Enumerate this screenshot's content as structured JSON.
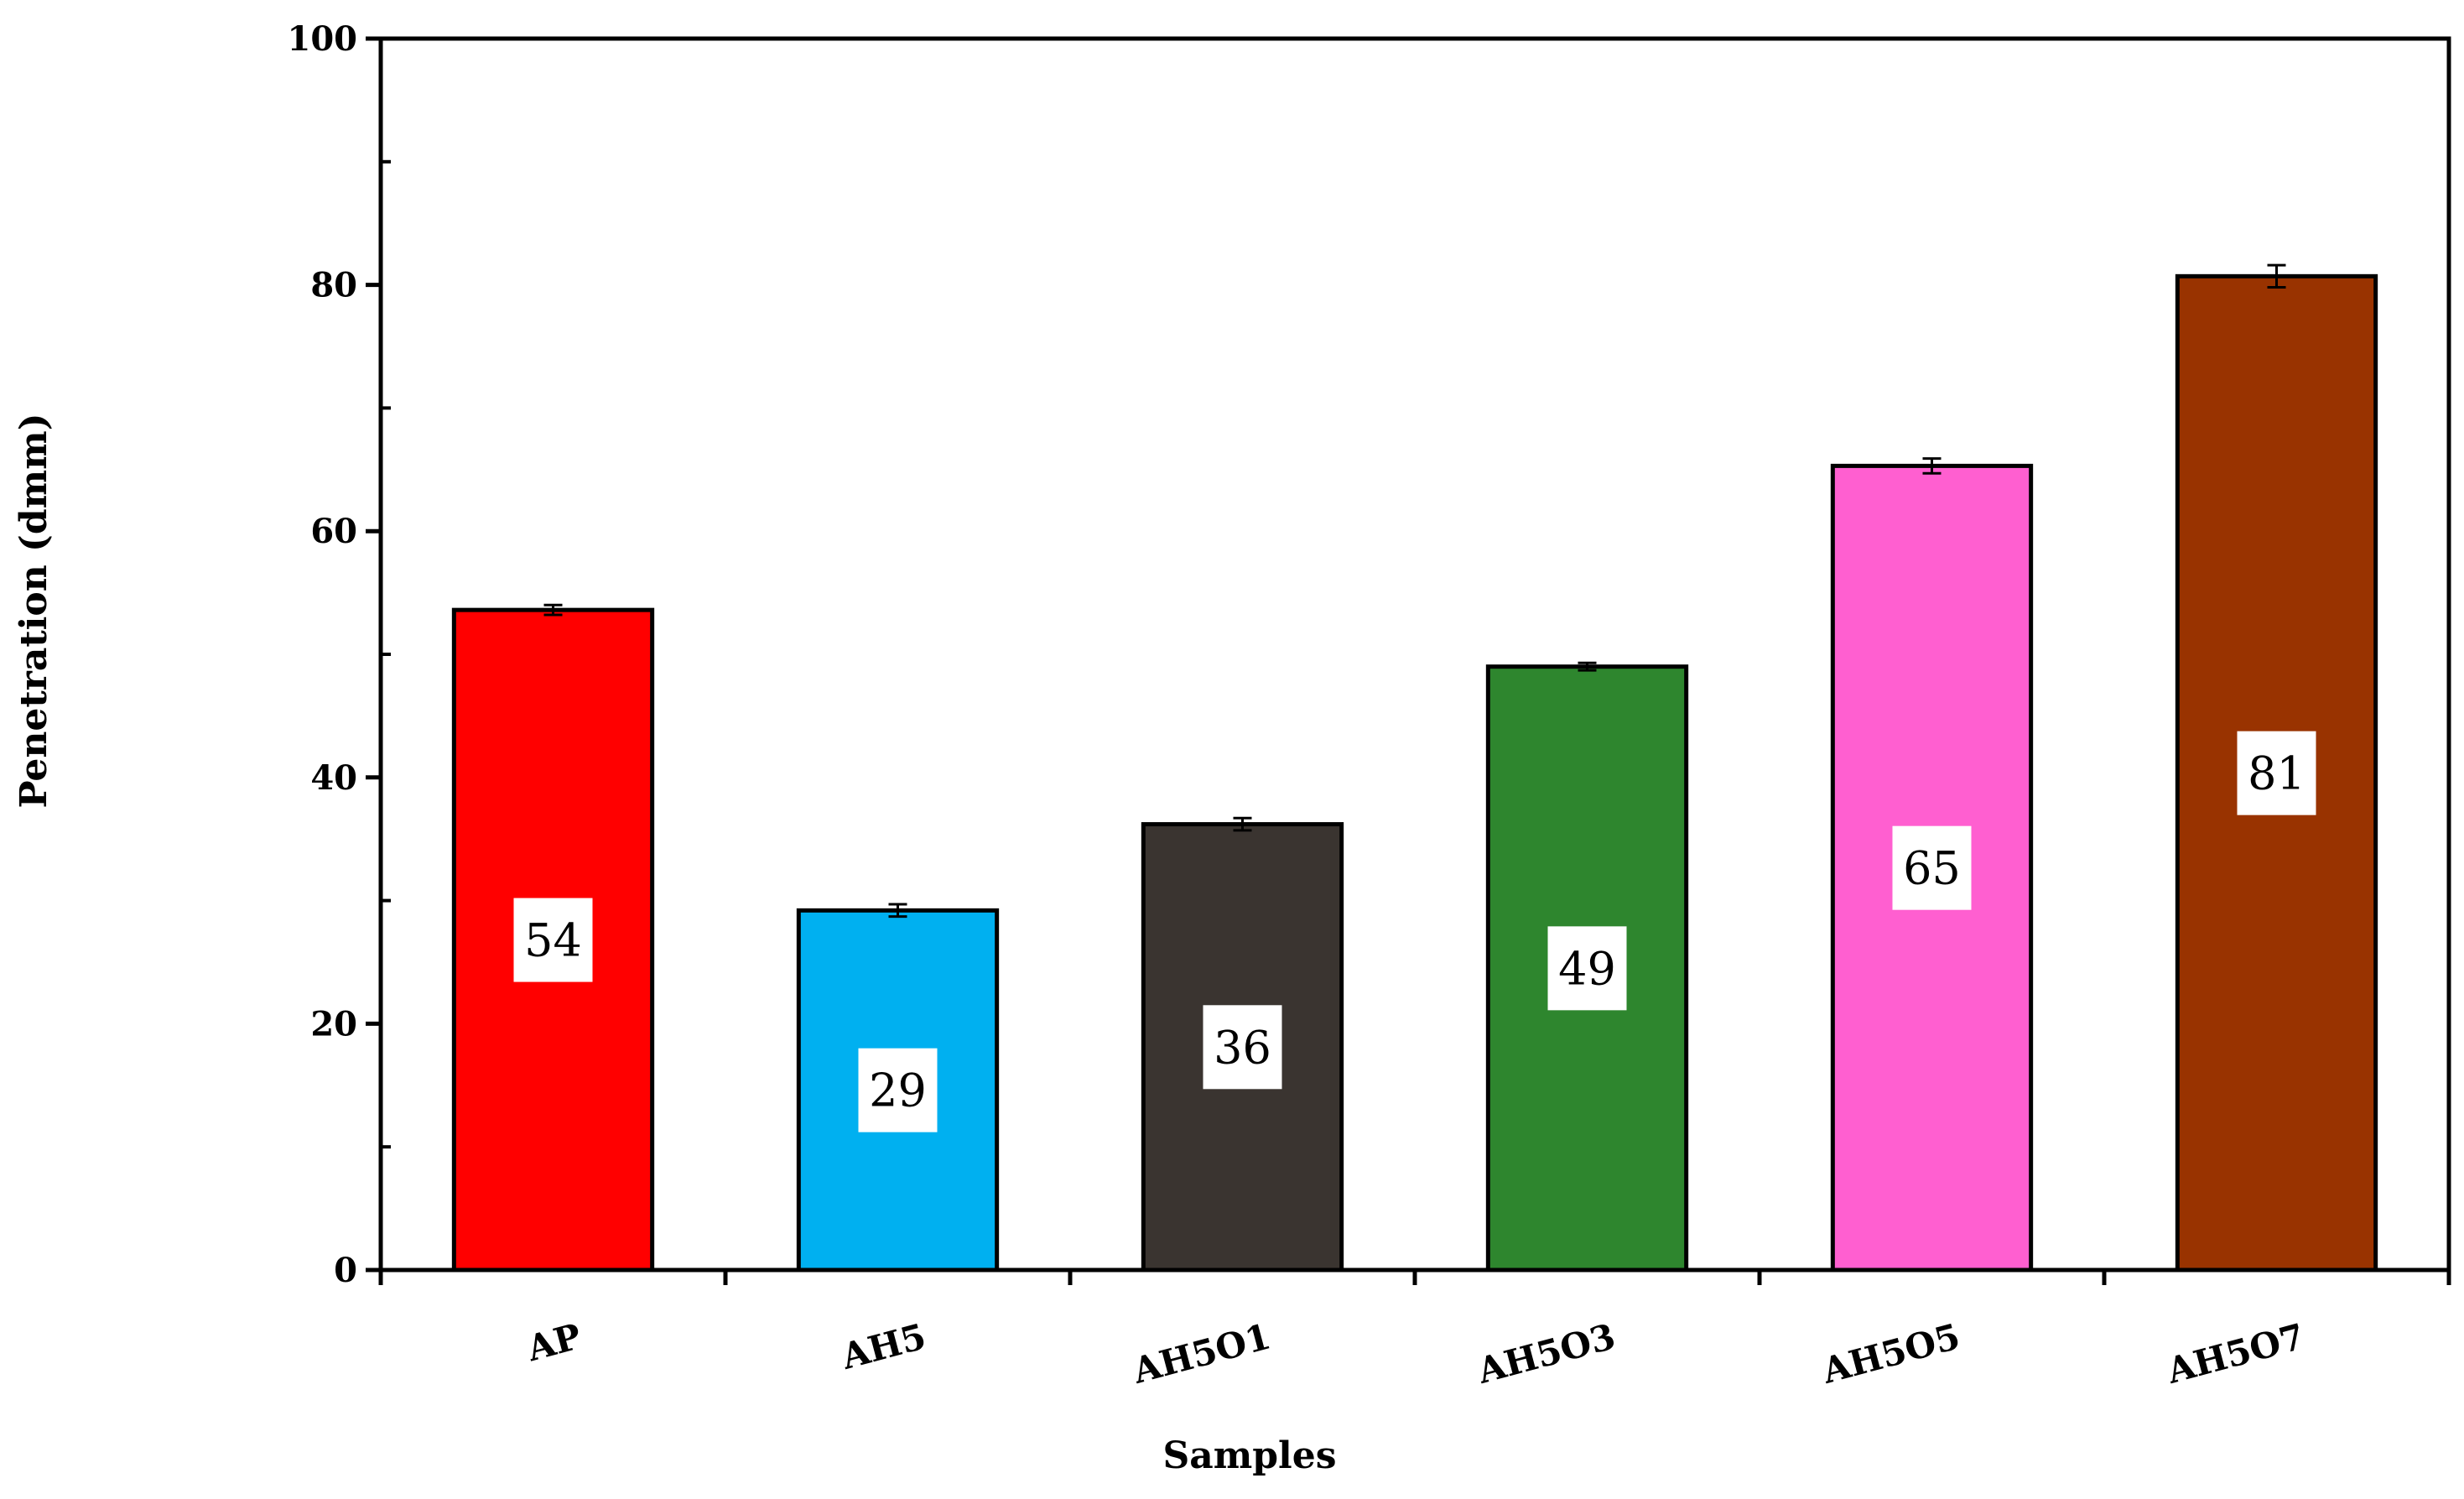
{
  "chart_data": {
    "type": "bar",
    "title": "",
    "xlabel": "Samples",
    "ylabel": "Penetration (dmm)",
    "ylim": [
      0,
      100
    ],
    "yticks": [
      0,
      20,
      40,
      60,
      80,
      100
    ],
    "y_minor_step": 10,
    "grid": false,
    "legend": "none",
    "categories": [
      "AP",
      "AH5",
      "AH5O1",
      "AH5O3",
      "AH5O5",
      "AH5O7"
    ],
    "values": [
      53.6,
      29.2,
      36.2,
      49.0,
      65.3,
      80.7
    ],
    "data_labels": [
      "54",
      "29",
      "36",
      "49",
      "65",
      "81"
    ],
    "errors": [
      0.4,
      0.5,
      0.5,
      0.3,
      0.6,
      0.9
    ],
    "colors": [
      "#ff0000",
      "#00b0f0",
      "#3a3430",
      "#2e862e",
      "#ff5fd0",
      "#993300"
    ]
  }
}
